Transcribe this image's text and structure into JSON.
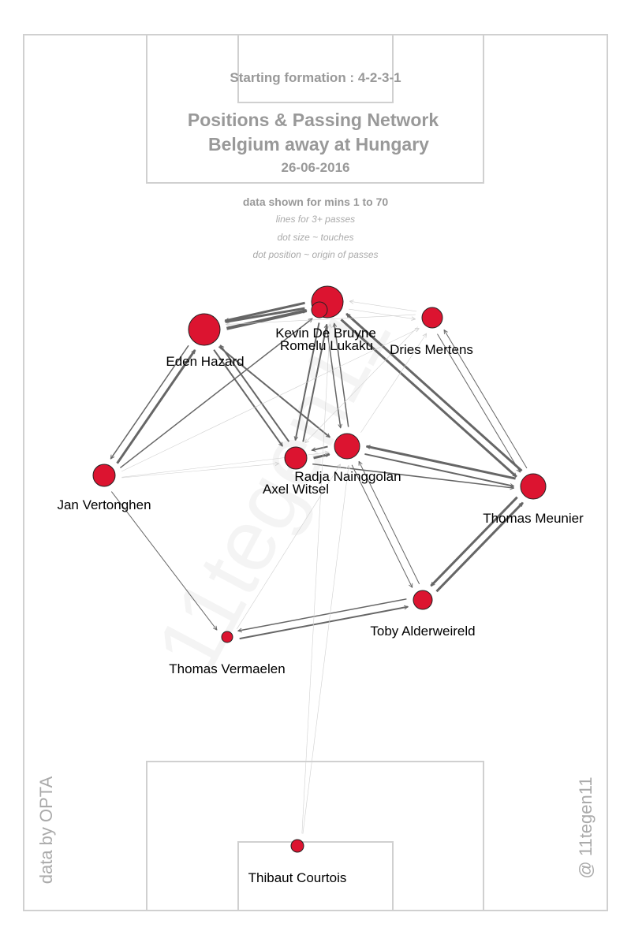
{
  "header": {
    "formation": "Starting formation : 4-2-3-1",
    "title": "Positions & Passing Network",
    "match": "Belgium  away at  Hungary",
    "date": "26-06-2016"
  },
  "notes": {
    "minutes": "data shown for mins 1 to 70",
    "lines": "lines for 3+ passes",
    "size": "dot size ~ touches",
    "position": "dot position ~ origin of passes"
  },
  "nodes": [
    {
      "label": "Kevin De Bruyne"
    },
    {
      "label": "Romelu Lukaku"
    },
    {
      "label": "Eden Hazard"
    },
    {
      "label": "Dries Mertens"
    },
    {
      "label": "Jan Vertonghen"
    },
    {
      "label": "Axel Witsel"
    },
    {
      "label": "Radja Nainggolan"
    },
    {
      "label": "Thomas Meunier"
    },
    {
      "label": "Toby Alderweireld"
    },
    {
      "label": "Thomas Vermaelen"
    },
    {
      "label": "Thibaut Courtois"
    }
  ],
  "credits": {
    "source": "data by OPTA",
    "author": "@ 11tegen11",
    "watermark": "11tegen11"
  }
}
